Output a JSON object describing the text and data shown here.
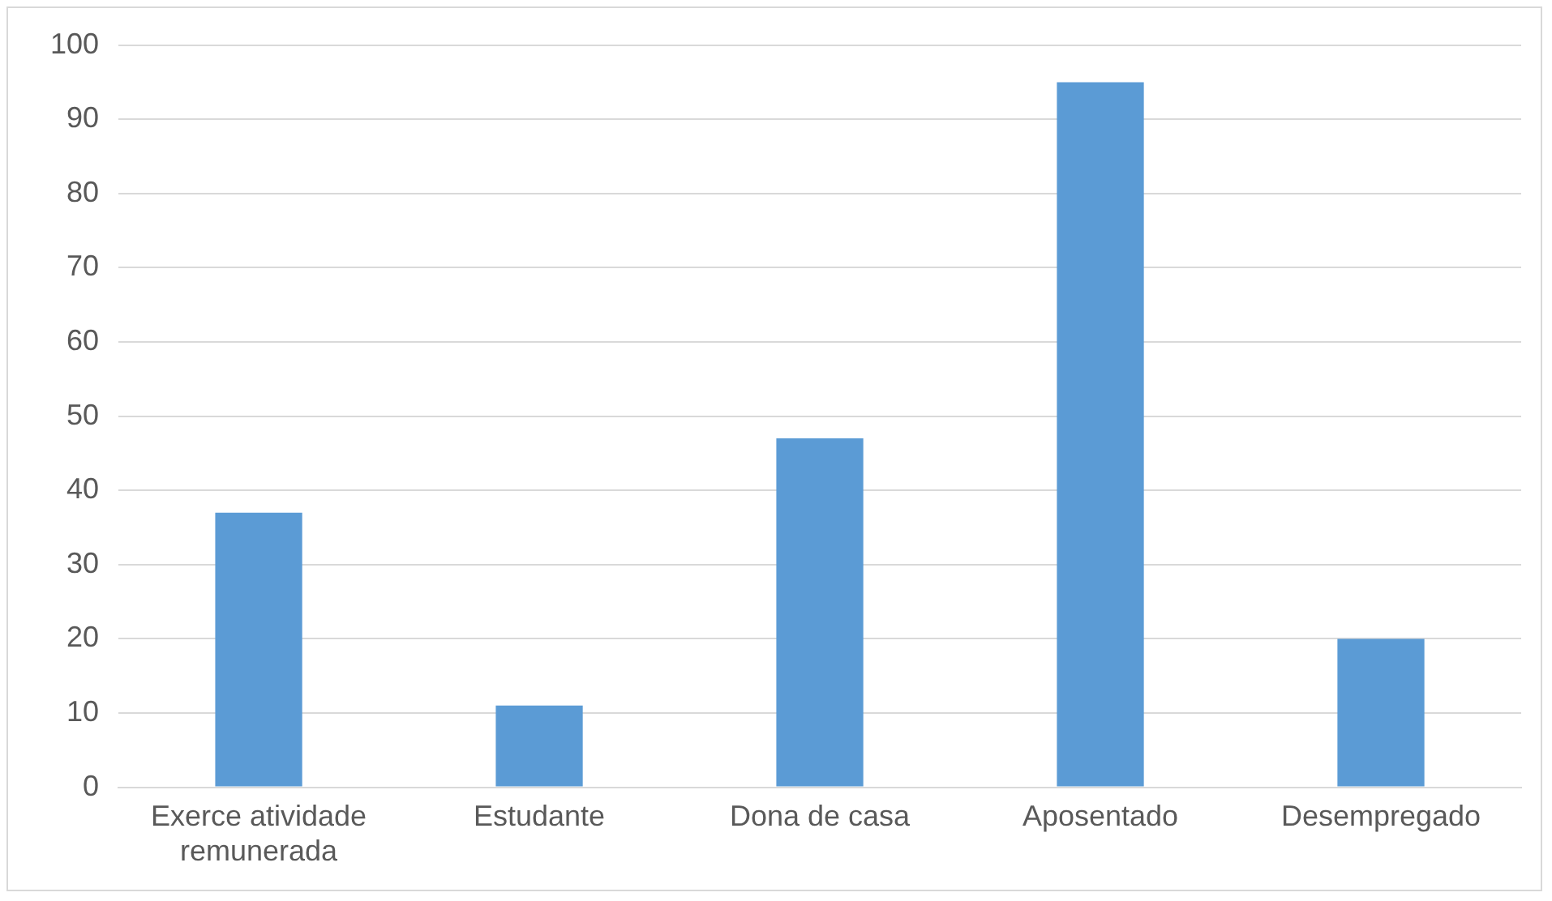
{
  "chart_data": {
    "type": "bar",
    "categories": [
      "Exerce atividade remunerada",
      "Estudante",
      "Dona de casa",
      "Aposentado",
      "Desempregado"
    ],
    "values": [
      37,
      11,
      47,
      95,
      20
    ],
    "color": "#5b9bd5",
    "ylim": [
      0,
      100
    ],
    "yticks": [
      0,
      10,
      20,
      30,
      40,
      50,
      60,
      70,
      80,
      90,
      100
    ],
    "grid": "y",
    "legend": false
  }
}
